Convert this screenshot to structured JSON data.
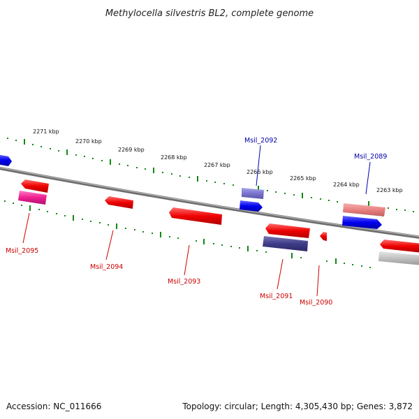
{
  "title": "Methylocella silvestris BL2, complete genome",
  "footer": {
    "accession": "Accession: NC_011666",
    "summary": "Topology: circular; Length: 4,305,430 bp; Genes: 3,872"
  },
  "colors": {
    "forward_gene": "#0000ee",
    "reverse_gene": "#ee0000",
    "tick": "#118811",
    "backbone": "#808080",
    "label_forward": "#0000aa",
    "label_reverse": "#cc0000"
  },
  "kbp_labels": [
    "2271 kbp",
    "2270 kbp",
    "2269 kbp",
    "2268 kbp",
    "2267 kbp",
    "2266 kbp",
    "2265 kbp",
    "2264 kbp",
    "2263 kbp"
  ],
  "gene_labels": {
    "forward": [
      "Msil_2092",
      "Msil_2089"
    ],
    "reverse": [
      "Msil_2095",
      "Msil_2094",
      "Msil_2093",
      "Msil_2091",
      "Msil_2090"
    ]
  }
}
